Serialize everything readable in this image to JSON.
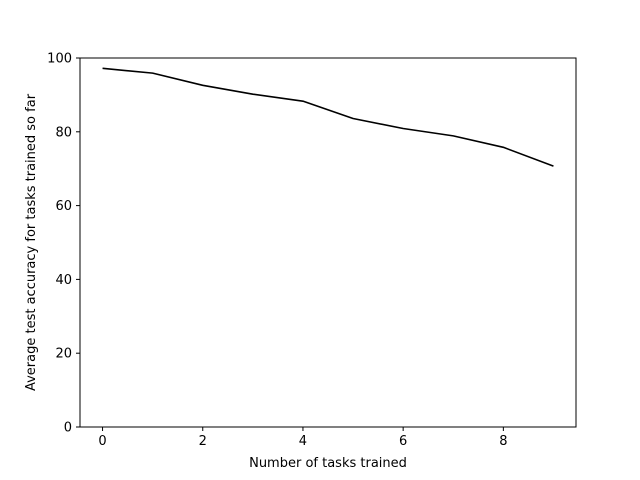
{
  "chart_data": {
    "type": "line",
    "title": "",
    "xlabel": "Number of tasks trained",
    "ylabel": "Average test accuracy for tasks trained so far",
    "xlim": [
      -0.45,
      9.45
    ],
    "ylim": [
      0,
      100
    ],
    "xticks": [
      0,
      2,
      4,
      6,
      8
    ],
    "yticks": [
      0,
      20,
      40,
      60,
      80,
      100
    ],
    "grid": false,
    "legend": "none",
    "series": [
      {
        "color": "#000000",
        "x": [
          0,
          1,
          2,
          3,
          4,
          5,
          6,
          7,
          8,
          9
        ],
        "y": [
          97.2,
          95.9,
          92.6,
          90.2,
          88.3,
          83.6,
          80.9,
          78.9,
          75.8,
          70.7
        ]
      }
    ]
  }
}
